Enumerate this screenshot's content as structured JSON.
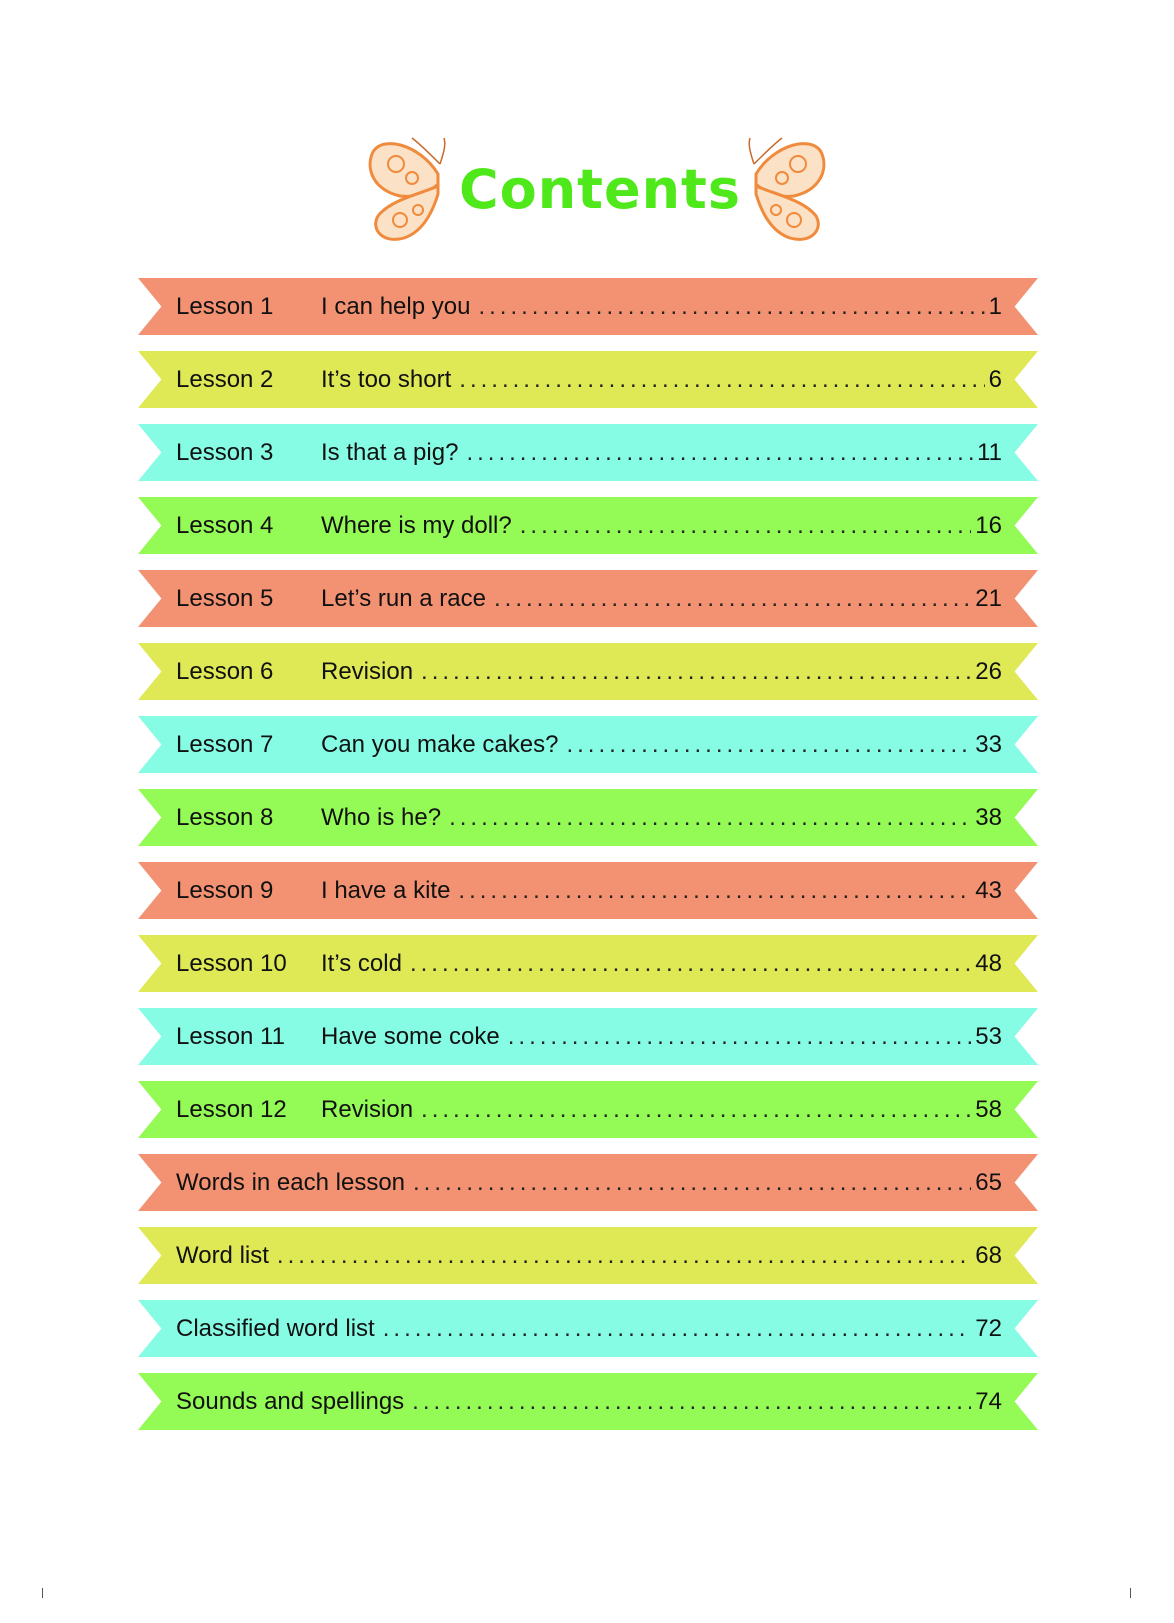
{
  "title": "Contents",
  "colors": {
    "title": "#4fe81a",
    "salmon": "#f29272",
    "yellow": "#dfe855",
    "cyan": "#86fce5",
    "green": "#94fa55",
    "butterfly": "#f08a3c"
  },
  "entries": [
    {
      "lesson": "Lesson 1",
      "title": "I can help you",
      "page": "1",
      "color": "salmon"
    },
    {
      "lesson": "Lesson 2",
      "title": "It’s too short",
      "page": "6",
      "color": "yellow"
    },
    {
      "lesson": "Lesson 3",
      "title": "Is that a pig?",
      "page": "11",
      "color": "cyan"
    },
    {
      "lesson": "Lesson 4",
      "title": "Where is my doll?",
      "page": "16",
      "color": "green"
    },
    {
      "lesson": "Lesson 5",
      "title": "Let’s run a race",
      "page": "21",
      "color": "salmon"
    },
    {
      "lesson": "Lesson 6",
      "title": "Revision",
      "page": "26",
      "color": "yellow"
    },
    {
      "lesson": "Lesson 7",
      "title": "Can you make cakes?",
      "page": "33",
      "color": "cyan"
    },
    {
      "lesson": "Lesson 8",
      "title": "Who is he?",
      "page": "38",
      "color": "green"
    },
    {
      "lesson": "Lesson 9",
      "title": "I have a kite",
      "page": "43",
      "color": "salmon"
    },
    {
      "lesson": "Lesson 10",
      "title": "It’s cold",
      "page": "48",
      "color": "yellow"
    },
    {
      "lesson": "Lesson 11",
      "title": "Have some coke",
      "page": "53",
      "color": "cyan"
    },
    {
      "lesson": "Lesson 12",
      "title": "Revision",
      "page": "58",
      "color": "green"
    },
    {
      "lesson": "",
      "title": "Words in each lesson",
      "page": "65",
      "color": "salmon"
    },
    {
      "lesson": "",
      "title": "Word list",
      "page": "68",
      "color": "yellow"
    },
    {
      "lesson": "",
      "title": "Classified word list",
      "page": "72",
      "color": "cyan"
    },
    {
      "lesson": "",
      "title": "Sounds and spellings",
      "page": "74",
      "color": "green"
    }
  ]
}
